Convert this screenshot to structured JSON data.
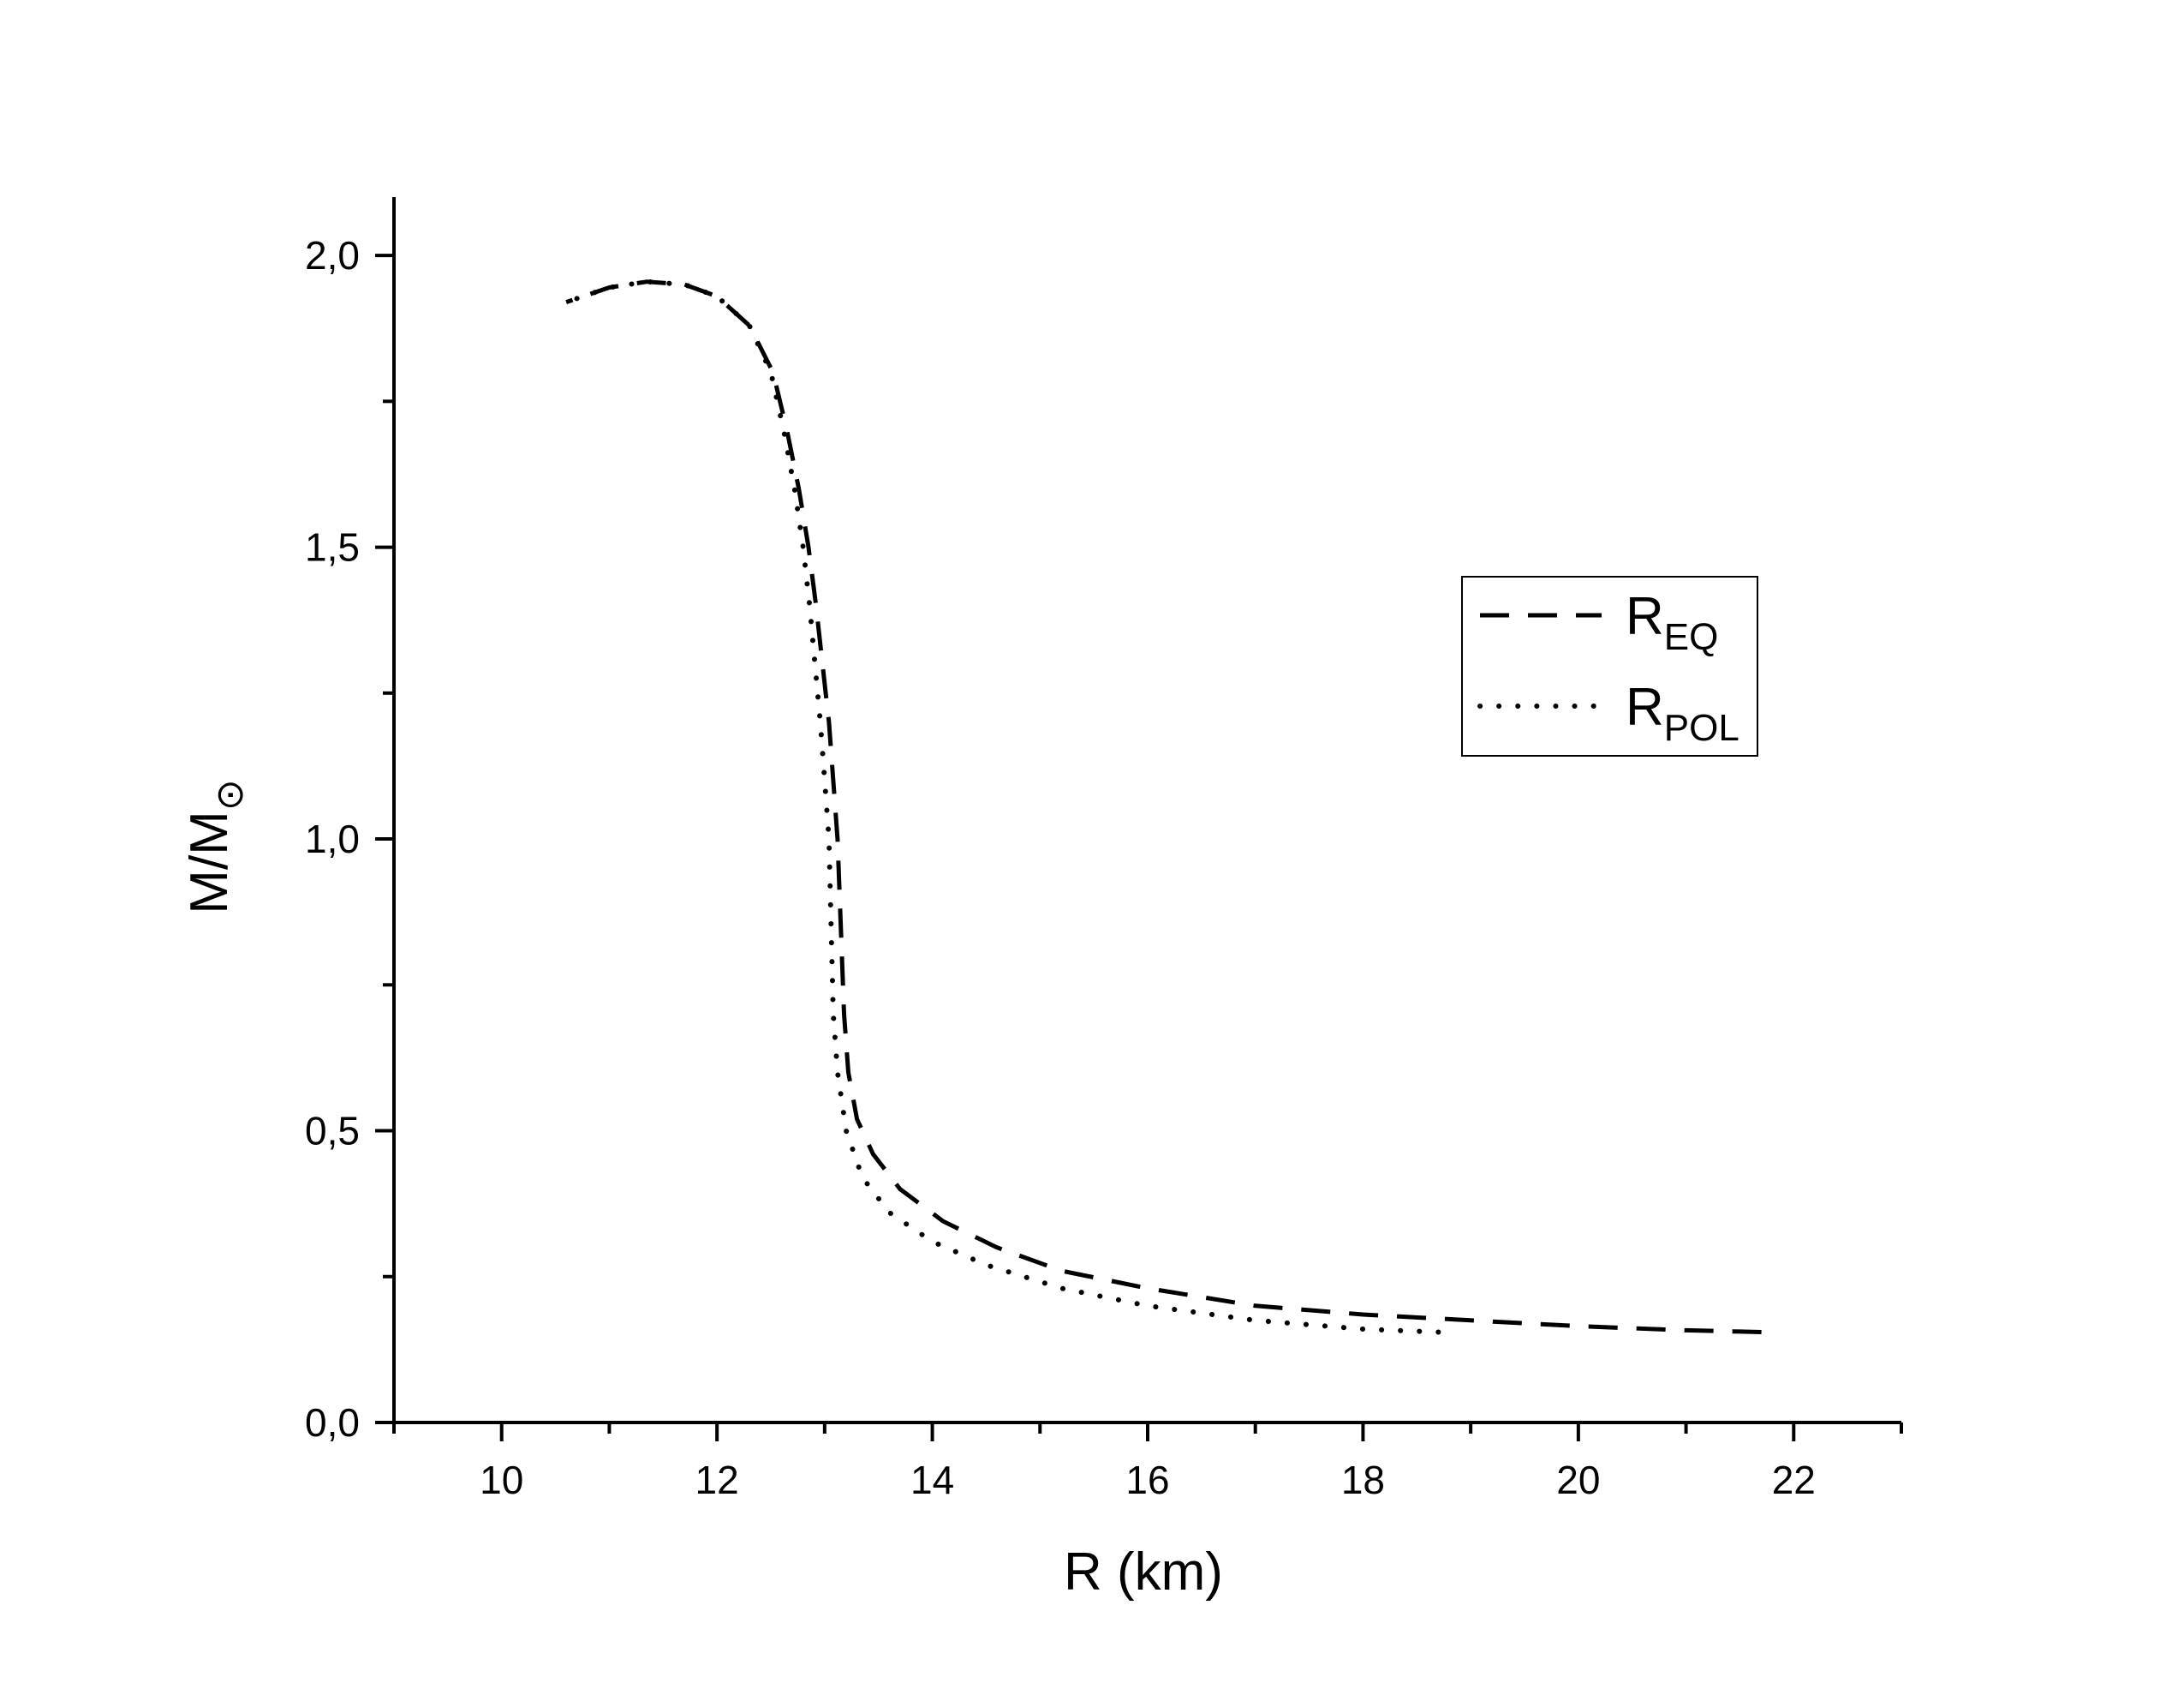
{
  "chart_data": {
    "type": "line",
    "title": "",
    "xlabel": "R (km)",
    "ylabel": {
      "base": "M/M",
      "subscript": "⊙"
    },
    "xlim": [
      9,
      23
    ],
    "ylim": [
      0,
      2.1
    ],
    "x_ticks": [
      10,
      12,
      14,
      16,
      18,
      20,
      22
    ],
    "x_tick_labels": [
      "10",
      "12",
      "14",
      "16",
      "18",
      "20",
      "22"
    ],
    "x_minor_ticks": [
      9,
      11,
      13,
      15,
      17,
      19,
      21,
      23
    ],
    "y_ticks": [
      0,
      0.5,
      1.0,
      1.5,
      2.0
    ],
    "y_tick_labels": [
      "0,0",
      "0,5",
      "1,0",
      "1,5",
      "2,0"
    ],
    "y_minor_ticks": [
      0.25,
      0.75,
      1.25,
      1.75
    ],
    "grid": false,
    "legend_position": "right",
    "series": [
      {
        "name": {
          "base": "R",
          "subscript": "EQ"
        },
        "line_style": "dashed",
        "color": "#000000",
        "points": [
          [
            21.7,
            0.155
          ],
          [
            21.0,
            0.158
          ],
          [
            20.0,
            0.165
          ],
          [
            19.0,
            0.175
          ],
          [
            18.0,
            0.185
          ],
          [
            17.0,
            0.2
          ],
          [
            16.0,
            0.23
          ],
          [
            15.2,
            0.26
          ],
          [
            14.6,
            0.3
          ],
          [
            14.1,
            0.345
          ],
          [
            13.7,
            0.4
          ],
          [
            13.45,
            0.46
          ],
          [
            13.3,
            0.52
          ],
          [
            13.22,
            0.6
          ],
          [
            13.18,
            0.7
          ],
          [
            13.15,
            0.85
          ],
          [
            13.12,
            1.0
          ],
          [
            13.08,
            1.1
          ],
          [
            13.04,
            1.2
          ],
          [
            12.98,
            1.3
          ],
          [
            12.92,
            1.4
          ],
          [
            12.85,
            1.5
          ],
          [
            12.76,
            1.6
          ],
          [
            12.65,
            1.7
          ],
          [
            12.52,
            1.8
          ],
          [
            12.3,
            1.88
          ],
          [
            12.0,
            1.93
          ],
          [
            11.7,
            1.95
          ],
          [
            11.35,
            1.955
          ],
          [
            11.0,
            1.945
          ],
          [
            10.6,
            1.92
          ]
        ]
      },
      {
        "name": {
          "base": "R",
          "subscript": "POL"
        },
        "line_style": "dotted",
        "color": "#000000",
        "points": [
          [
            18.7,
            0.155
          ],
          [
            18.0,
            0.16
          ],
          [
            17.0,
            0.175
          ],
          [
            16.0,
            0.2
          ],
          [
            15.2,
            0.23
          ],
          [
            14.5,
            0.27
          ],
          [
            14.0,
            0.31
          ],
          [
            13.6,
            0.36
          ],
          [
            13.35,
            0.42
          ],
          [
            13.2,
            0.5
          ],
          [
            13.12,
            0.6
          ],
          [
            13.08,
            0.7
          ],
          [
            13.06,
            0.85
          ],
          [
            13.04,
            1.0
          ],
          [
            13.0,
            1.1
          ],
          [
            12.96,
            1.2
          ],
          [
            12.91,
            1.3
          ],
          [
            12.86,
            1.4
          ],
          [
            12.8,
            1.5
          ],
          [
            12.72,
            1.6
          ],
          [
            12.62,
            1.7
          ],
          [
            12.5,
            1.8
          ],
          [
            12.3,
            1.88
          ],
          [
            12.0,
            1.93
          ],
          [
            11.7,
            1.95
          ],
          [
            11.35,
            1.955
          ],
          [
            11.0,
            1.945
          ],
          [
            10.6,
            1.92
          ]
        ]
      }
    ]
  }
}
